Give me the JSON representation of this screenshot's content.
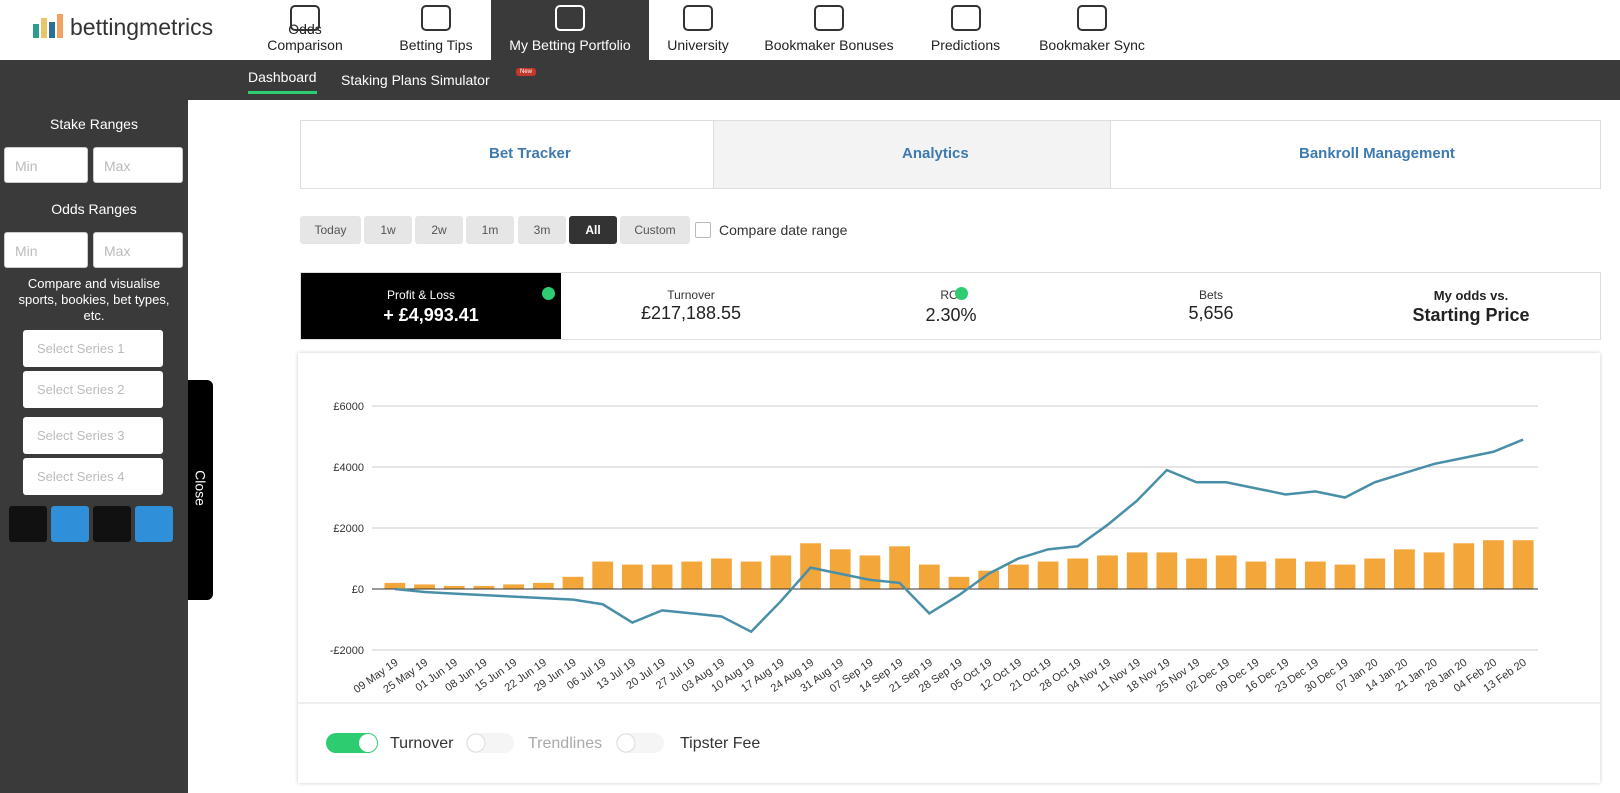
{
  "brand": "bettingmetrics",
  "nav": [
    "Odds Comparison",
    "Betting Tips",
    "My Betting Portfolio",
    "University",
    "Bookmaker Bonuses",
    "Predictions",
    "Bookmaker Sync"
  ],
  "subnav": {
    "items": [
      "Dashboard",
      "Staking Plans Simulator"
    ],
    "badge": "New"
  },
  "sidebar": {
    "stake_title": "Stake Ranges",
    "odds_title": "Odds Ranges",
    "min": "Min",
    "max": "Max",
    "compare_text": "Compare and visualise sports, bookies, bet types, etc.",
    "series_selects": [
      "Select Series 1",
      "Select Series 2",
      "Select Series 3",
      "Select Series 4"
    ],
    "close": "Close"
  },
  "tabs": [
    "Bet Tracker",
    "Analytics",
    "Bankroll Management"
  ],
  "date_buttons": [
    "Today",
    "1w",
    "2w",
    "1m",
    "3m",
    "All",
    "Custom"
  ],
  "compare_date_range": "Compare date range",
  "stats": {
    "profit_loss": "+ £4,993.41",
    "turnover": "£217,188.55",
    "roi_label": "ROI",
    "roi": "2.30%",
    "bets_label": "Bets",
    "bets": "5,656",
    "odds_line1": "My odds vs.",
    "odds_line2": "Starting Price"
  },
  "toggles": [
    "Trendlines",
    "Tipster Fee"
  ],
  "chart_data": {
    "type": "bar_line",
    "categories": [
      "09 May 19",
      "25 May 19",
      "01 Jun 19",
      "08 Jun 19",
      "15 Jun 19",
      "22 Jun 19",
      "29 Jun 19",
      "06 Jul 19",
      "13 Jul 19",
      "20 Jul 19",
      "27 Jul 19",
      "03 Aug 19",
      "10 Aug 19",
      "17 Aug 19",
      "24 Aug 19",
      "31 Aug 19",
      "07 Sep 19",
      "14 Sep 19",
      "21 Sep 19",
      "28 Sep 19",
      "05 Oct 19",
      "12 Oct 19",
      "21 Oct 19",
      "28 Oct 19",
      "04 Nov 19",
      "11 Nov 19",
      "18 Nov 19",
      "25 Nov 19",
      "02 Dec 19",
      "09 Dec 19",
      "16 Dec 19",
      "23 Dec 19",
      "30 Dec 19",
      "07 Jan 20",
      "14 Jan 20",
      "21 Jan 20",
      "28 Jan 20",
      "04 Feb 20",
      "13 Feb 20"
    ],
    "series": [
      {
        "name": "Turnover",
        "kind": "bar",
        "color": "#f3a73b",
        "values": [
          200,
          150,
          100,
          100,
          150,
          200,
          400,
          900,
          800,
          800,
          900,
          1000,
          900,
          1100,
          1500,
          1300,
          1100,
          1400,
          800,
          400,
          600,
          800,
          900,
          1000,
          1100,
          1200,
          1200,
          1000,
          1100,
          900,
          1000,
          900,
          800,
          1000,
          1300,
          1200,
          1500,
          1600,
          1600
        ]
      },
      {
        "name": "Profit & Loss",
        "kind": "line",
        "color": "#4a8fa8",
        "values": [
          0,
          -100,
          -150,
          -200,
          -250,
          -300,
          -350,
          -500,
          -1100,
          -700,
          -800,
          -900,
          -1400,
          -400,
          700,
          500,
          300,
          200,
          -800,
          -200,
          500,
          1000,
          1300,
          1400,
          2100,
          2900,
          3900,
          3500,
          3500,
          3300,
          3100,
          3200,
          3000,
          3500,
          3800,
          4100,
          4300,
          4500,
          4900
        ]
      }
    ],
    "ylim": [
      -2000,
      6000
    ],
    "yticks": [
      {
        "value": -2000,
        "label": "-£2000"
      },
      {
        "value": 0,
        "label": "£0"
      },
      {
        "value": 2000,
        "label": "£2000"
      },
      {
        "value": 4000,
        "label": "£4000"
      },
      {
        "value": 6000,
        "label": "£6000"
      }
    ],
    "grid": true
  }
}
